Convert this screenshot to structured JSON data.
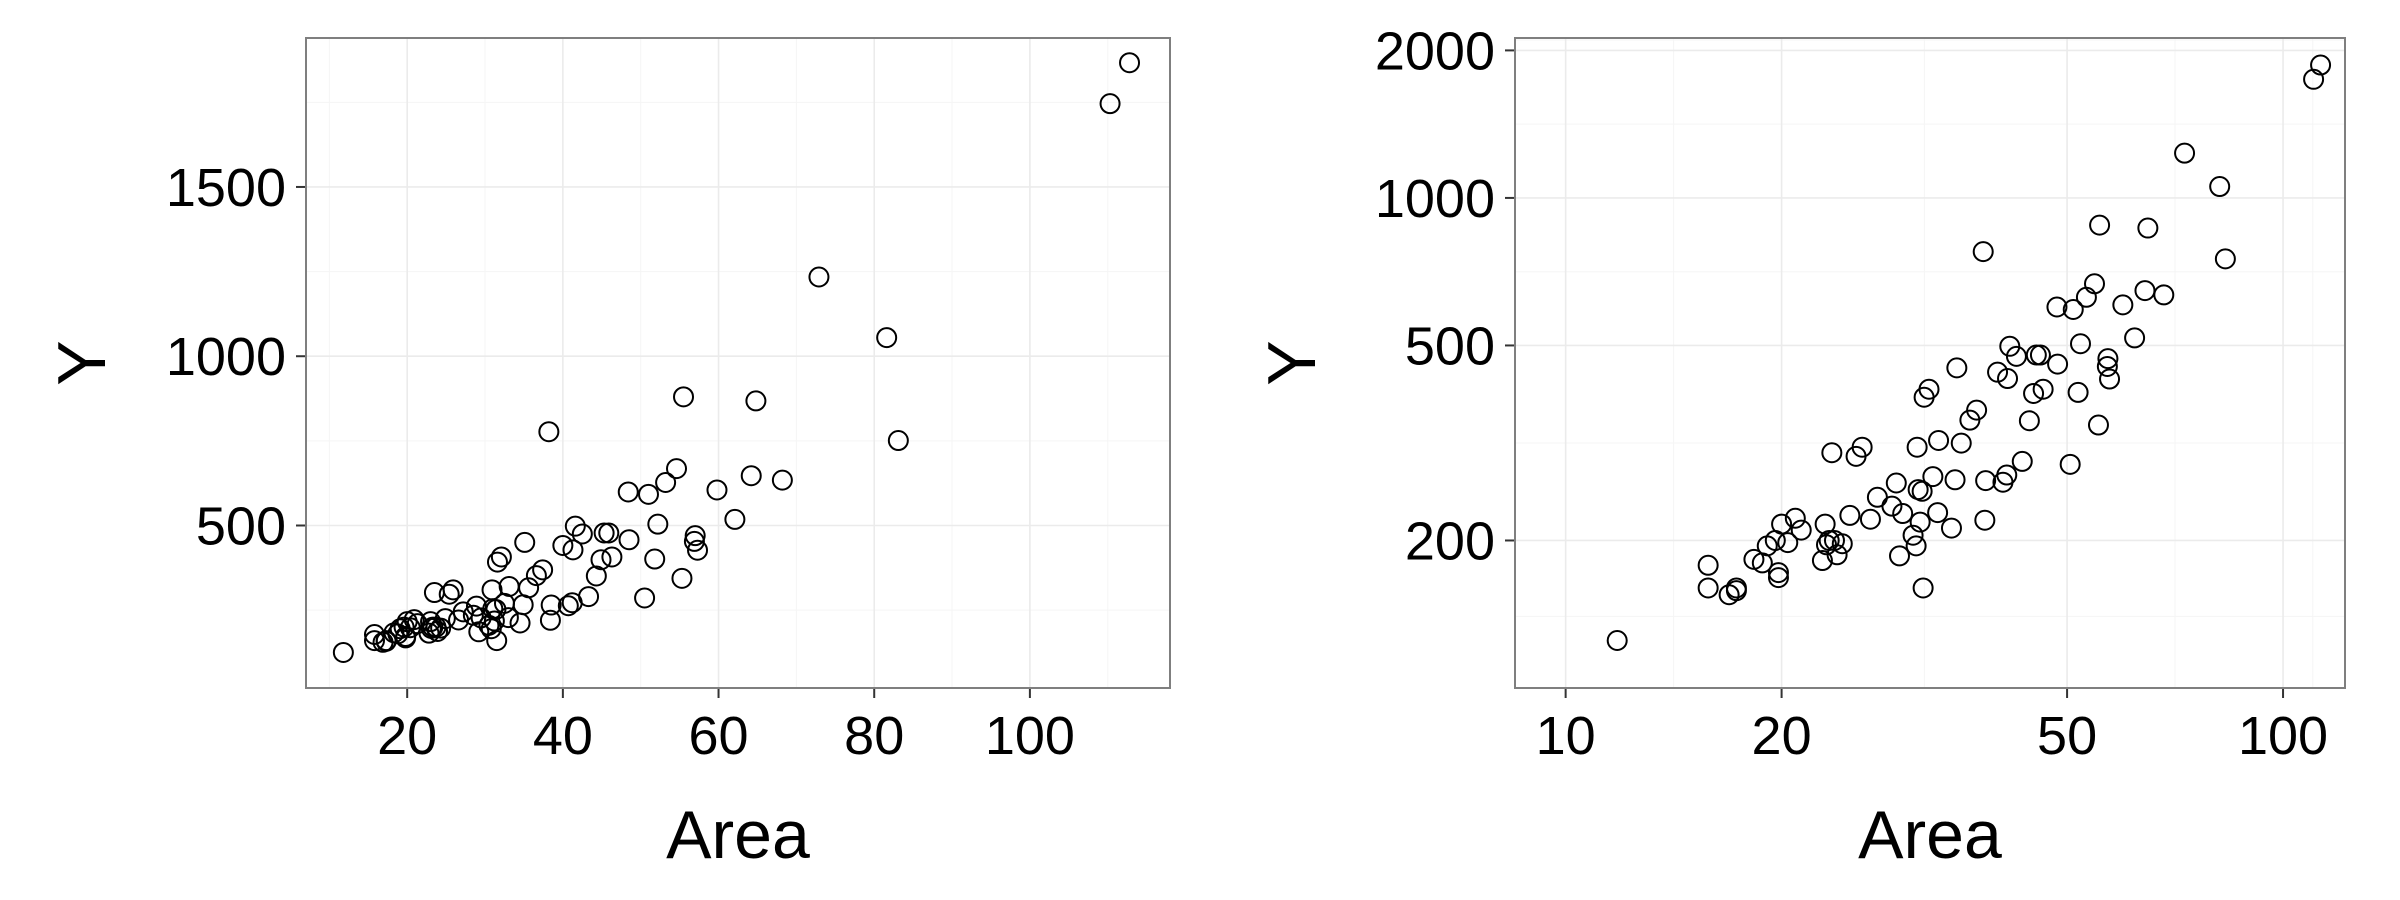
{
  "chart_data": [
    {
      "type": "scatter",
      "xlabel": "Area",
      "ylabel": "Y",
      "xscale": "linear",
      "yscale": "linear",
      "xlim": [
        7,
        118
      ],
      "ylim": [
        20,
        1940
      ],
      "xticks": [
        20,
        40,
        60,
        80,
        100
      ],
      "xtick_labels": [
        "20",
        "40",
        "60",
        "80",
        "100"
      ],
      "yticks": [
        500,
        1000,
        1500
      ],
      "ytick_labels": [
        "500",
        "1000",
        "1500"
      ],
      "grid": true,
      "point_style": "hollow-circle",
      "series": [
        {
          "x": [
            11.8,
            15.8,
            15.8,
            16.9,
            17.3,
            17.3,
            18.3,
            18.8,
            19.1,
            19.6,
            19.8,
            19.8,
            20.0,
            20.4,
            20.9,
            21.3,
            22.8,
            23.0,
            23.1,
            23.3,
            23.5,
            23.7,
            23.9,
            24.3,
            24.9,
            25.4,
            25.9,
            26.6,
            27.2,
            28.5,
            28.9,
            29.2,
            29.5,
            30.5,
            30.8,
            30.9,
            31.0,
            31.2,
            31.4,
            31.5,
            31.6,
            32.1,
            32.5,
            33.0,
            33.1,
            34.5,
            34.9,
            35.1,
            35.6,
            36.6,
            37.4,
            38.2,
            38.4,
            38.5,
            40.0,
            40.7,
            41.2,
            41.3,
            41.6,
            42.5,
            43.3,
            44.3,
            44.9,
            45.3,
            45.9,
            46.3,
            48.4,
            48.5,
            50.5,
            51.0,
            51.8,
            52.2,
            53.2,
            54.6,
            55.3,
            55.5,
            56.9,
            57.0,
            57.3,
            59.8,
            62.1,
            64.2,
            64.8,
            68.2,
            72.9,
            81.6,
            83.1,
            110.3,
            112.8
          ],
          "y": [
            125,
            160,
            178,
            155,
            160,
            158,
            183,
            180,
            195,
            200,
            168,
            172,
            216,
            198,
            222,
            210,
            182,
            216,
            196,
            200,
            302,
            200,
            187,
            197,
            225,
            297,
            310,
            221,
            245,
            235,
            262,
            186,
            227,
            205,
            195,
            310,
            254,
            218,
            252,
            160,
            392,
            407,
            270,
            228,
            320,
            212,
            266,
            450,
            316,
            352,
            369,
            777,
            220,
            265,
            441,
            263,
            272,
            428,
            498,
            475,
            290,
            351,
            399,
            478,
            478,
            407,
            599,
            458,
            286,
            592,
            401,
            504,
            627,
            668,
            344,
            880,
            453,
            470,
            427,
            605,
            518,
            647,
            868,
            634,
            1234,
            1055,
            751,
            1746,
            1867
          ]
        }
      ]
    },
    {
      "type": "scatter",
      "xlabel": "Area",
      "ylabel": "Y",
      "xscale": "log10",
      "yscale": "log10",
      "xlim": [
        8.5,
        122
      ],
      "ylim": [
        100,
        2120
      ],
      "xticks": [
        10,
        20,
        50,
        100
      ],
      "xtick_labels": [
        "10",
        "20",
        "50",
        "100"
      ],
      "yticks": [
        200,
        500,
        1000,
        2000
      ],
      "ytick_labels": [
        "200",
        "500",
        "1000",
        "2000"
      ],
      "grid": true,
      "point_style": "hollow-circle",
      "series": [
        {
          "x": [
            11.8,
            15.8,
            15.8,
            16.9,
            17.3,
            17.3,
            18.3,
            18.8,
            19.1,
            19.6,
            19.8,
            19.8,
            20.0,
            20.4,
            20.9,
            21.3,
            22.8,
            23.0,
            23.1,
            23.3,
            23.5,
            23.7,
            23.9,
            24.3,
            24.9,
            25.4,
            25.9,
            26.6,
            27.2,
            28.5,
            28.9,
            29.2,
            29.5,
            30.5,
            30.8,
            30.9,
            31.0,
            31.2,
            31.4,
            31.5,
            31.6,
            32.1,
            32.5,
            33.0,
            33.1,
            34.5,
            34.9,
            35.1,
            35.6,
            36.6,
            37.4,
            38.2,
            38.4,
            38.5,
            40.0,
            40.7,
            41.2,
            41.3,
            41.6,
            42.5,
            43.3,
            44.3,
            44.9,
            45.3,
            45.9,
            46.3,
            48.4,
            48.5,
            50.5,
            51.0,
            51.8,
            52.2,
            53.2,
            54.6,
            55.3,
            55.5,
            56.9,
            57.0,
            57.3,
            59.8,
            62.1,
            64.2,
            64.8,
            68.2,
            72.9,
            81.6,
            83.1,
            110.3,
            112.8
          ],
          "y": [
            125,
            160,
            178,
            155,
            160,
            158,
            183,
            180,
            195,
            200,
            168,
            172,
            216,
            198,
            222,
            210,
            182,
            216,
            196,
            200,
            302,
            200,
            187,
            197,
            225,
            297,
            310,
            221,
            245,
            235,
            262,
            186,
            227,
            205,
            195,
            310,
            254,
            218,
            252,
            160,
            392,
            407,
            270,
            228,
            320,
            212,
            266,
            450,
            316,
            352,
            369,
            777,
            220,
            265,
            441,
            263,
            272,
            428,
            498,
            475,
            290,
            351,
            399,
            478,
            478,
            407,
            599,
            458,
            286,
            592,
            401,
            504,
            627,
            668,
            344,
            880,
            453,
            470,
            427,
            605,
            518,
            647,
            868,
            634,
            1234,
            1055,
            751,
            1746,
            1867
          ]
        }
      ]
    }
  ]
}
